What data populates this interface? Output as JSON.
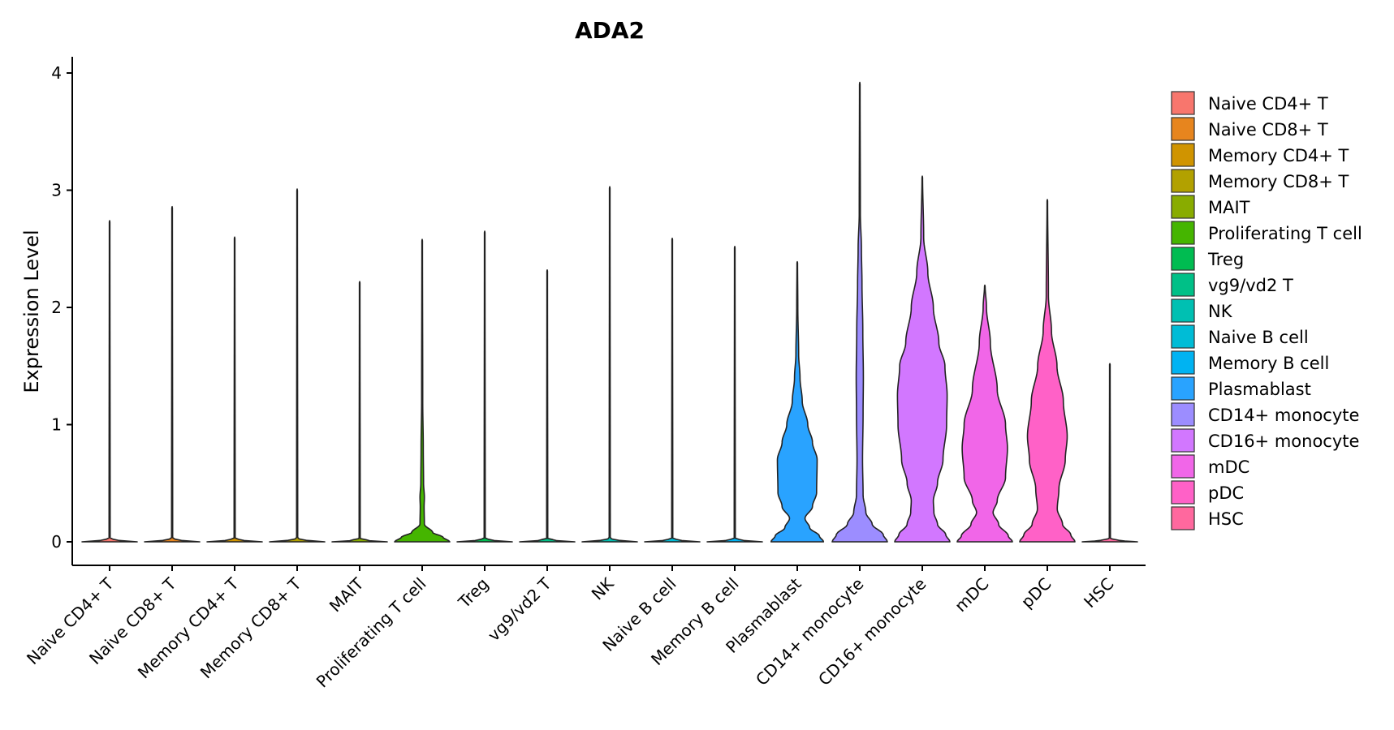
{
  "chart_data": {
    "type": "violin",
    "title": "ADA2",
    "xlabel": "",
    "ylabel": "Expression Level",
    "ylim": [
      -0.1,
      4.1
    ],
    "yticks": [
      0,
      1,
      2,
      3,
      4
    ],
    "grid": false,
    "legend_position": "right",
    "categories": [
      "Naive CD4+ T",
      "Naive CD8+ T",
      "Memory CD4+ T",
      "Memory CD8+ T",
      "MAIT",
      "Proliferating T cell",
      "Treg",
      "vg9/vd2 T",
      "NK",
      "Naive B cell",
      "Memory B cell",
      "Plasmablast",
      "CD14+ monocyte",
      "CD16+ monocyte",
      "mDC",
      "pDC",
      "HSC"
    ],
    "colors": [
      "#F8766D",
      "#E7851E",
      "#D09400",
      "#B2A100",
      "#89AC00",
      "#45B500",
      "#00BC51",
      "#00C087",
      "#00C0B2",
      "#00BCD6",
      "#00B3F2",
      "#29A3FF",
      "#9C8DFF",
      "#D277FF",
      "#F166E8",
      "#FF61C7",
      "#FF689E"
    ],
    "max_values": [
      2.74,
      2.86,
      2.6,
      3.01,
      2.22,
      2.58,
      2.65,
      2.32,
      3.03,
      2.59,
      2.52,
      2.39,
      3.92,
      3.12,
      2.19,
      2.92,
      1.52
    ],
    "density_profiles": [
      [
        [
          0,
          1
        ],
        [
          0.01,
          0.35
        ],
        [
          0.03,
          0.02
        ],
        [
          2.74,
          0.01
        ]
      ],
      [
        [
          0,
          1
        ],
        [
          0.01,
          0.35
        ],
        [
          0.03,
          0.02
        ],
        [
          2.86,
          0.01
        ]
      ],
      [
        [
          0,
          1
        ],
        [
          0.01,
          0.35
        ],
        [
          0.03,
          0.02
        ],
        [
          2.6,
          0.01
        ]
      ],
      [
        [
          0,
          1
        ],
        [
          0.01,
          0.35
        ],
        [
          0.03,
          0.02
        ],
        [
          3.01,
          0.01
        ]
      ],
      [
        [
          0,
          1
        ],
        [
          0.01,
          0.35
        ],
        [
          0.03,
          0.02
        ],
        [
          2.22,
          0.01
        ]
      ],
      [
        [
          0,
          1
        ],
        [
          0.04,
          0.75
        ],
        [
          0.08,
          0.38
        ],
        [
          0.15,
          0.08
        ],
        [
          0.3,
          0.07
        ],
        [
          0.38,
          0.08
        ],
        [
          0.5,
          0.05
        ],
        [
          0.8,
          0.04
        ],
        [
          1.2,
          0.02
        ],
        [
          2.58,
          0.01
        ]
      ],
      [
        [
          0,
          1
        ],
        [
          0.01,
          0.35
        ],
        [
          0.03,
          0.02
        ],
        [
          2.65,
          0.01
        ]
      ],
      [
        [
          0,
          1
        ],
        [
          0.01,
          0.35
        ],
        [
          0.03,
          0.02
        ],
        [
          2.32,
          0.01
        ]
      ],
      [
        [
          0,
          1
        ],
        [
          0.01,
          0.35
        ],
        [
          0.03,
          0.02
        ],
        [
          3.03,
          0.01
        ]
      ],
      [
        [
          0,
          1
        ],
        [
          0.01,
          0.35
        ],
        [
          0.03,
          0.02
        ],
        [
          2.59,
          0.01
        ]
      ],
      [
        [
          0,
          1
        ],
        [
          0.01,
          0.35
        ],
        [
          0.03,
          0.02
        ],
        [
          2.52,
          0.01
        ]
      ],
      [
        [
          0,
          0.95
        ],
        [
          0.05,
          0.8
        ],
        [
          0.12,
          0.45
        ],
        [
          0.2,
          0.28
        ],
        [
          0.3,
          0.55
        ],
        [
          0.42,
          0.7
        ],
        [
          0.7,
          0.72
        ],
        [
          0.85,
          0.55
        ],
        [
          1.0,
          0.38
        ],
        [
          1.2,
          0.18
        ],
        [
          1.4,
          0.1
        ],
        [
          1.6,
          0.05
        ],
        [
          2.0,
          0.02
        ],
        [
          2.39,
          0.01
        ]
      ],
      [
        [
          0,
          1
        ],
        [
          0.06,
          0.85
        ],
        [
          0.15,
          0.45
        ],
        [
          0.25,
          0.22
        ],
        [
          0.4,
          0.12
        ],
        [
          0.7,
          0.1
        ],
        [
          1.1,
          0.12
        ],
        [
          1.4,
          0.13
        ],
        [
          1.8,
          0.11
        ],
        [
          2.2,
          0.08
        ],
        [
          2.5,
          0.06
        ],
        [
          2.8,
          0.02
        ],
        [
          3.92,
          0.01
        ]
      ],
      [
        [
          0,
          1
        ],
        [
          0.06,
          0.85
        ],
        [
          0.15,
          0.55
        ],
        [
          0.25,
          0.42
        ],
        [
          0.35,
          0.4
        ],
        [
          0.5,
          0.55
        ],
        [
          0.7,
          0.75
        ],
        [
          1.0,
          0.88
        ],
        [
          1.25,
          0.9
        ],
        [
          1.5,
          0.82
        ],
        [
          1.7,
          0.6
        ],
        [
          2.0,
          0.4
        ],
        [
          2.3,
          0.2
        ],
        [
          2.6,
          0.05
        ],
        [
          3.12,
          0.01
        ]
      ],
      [
        [
          0,
          1
        ],
        [
          0.05,
          0.85
        ],
        [
          0.15,
          0.5
        ],
        [
          0.25,
          0.3
        ],
        [
          0.35,
          0.45
        ],
        [
          0.55,
          0.75
        ],
        [
          0.8,
          0.82
        ],
        [
          1.0,
          0.75
        ],
        [
          1.3,
          0.45
        ],
        [
          1.7,
          0.2
        ],
        [
          2.0,
          0.06
        ],
        [
          2.19,
          0.01
        ]
      ],
      [
        [
          0,
          1
        ],
        [
          0.06,
          0.85
        ],
        [
          0.15,
          0.55
        ],
        [
          0.28,
          0.36
        ],
        [
          0.45,
          0.42
        ],
        [
          0.7,
          0.65
        ],
        [
          0.9,
          0.72
        ],
        [
          1.2,
          0.58
        ],
        [
          1.5,
          0.35
        ],
        [
          1.8,
          0.15
        ],
        [
          2.1,
          0.04
        ],
        [
          2.92,
          0.01
        ]
      ],
      [
        [
          0,
          1
        ],
        [
          0.01,
          0.35
        ],
        [
          0.03,
          0.02
        ],
        [
          1.52,
          0.01
        ]
      ]
    ]
  }
}
